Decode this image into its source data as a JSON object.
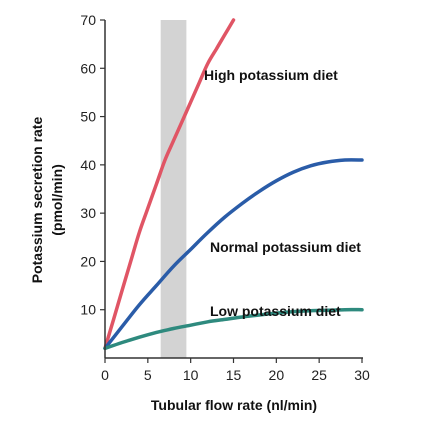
{
  "chart_data": {
    "type": "line",
    "xlabel": "Tubular flow rate (nl/min)",
    "ylabel_line1": "Potassium secretion rate",
    "ylabel_line2": "(pmol/min)",
    "xlim": [
      0,
      30
    ],
    "ylim": [
      0,
      70
    ],
    "x_ticks": [
      0,
      5,
      10,
      15,
      20,
      25,
      30
    ],
    "y_ticks": [
      10,
      20,
      30,
      40,
      50,
      60,
      70
    ],
    "shaded_band": {
      "x_start": 6.5,
      "x_end": 9.5,
      "color": "#d3d3d3"
    },
    "grid": false,
    "series": [
      {
        "name": "High potassium diet",
        "color": "#e05565",
        "x": [
          0,
          1,
          2,
          3,
          4,
          5,
          6,
          7,
          8,
          9,
          10,
          11,
          12,
          13,
          14,
          15
        ],
        "y": [
          2,
          8,
          14,
          20,
          26,
          31,
          36,
          41,
          45,
          49,
          53,
          57,
          61,
          64,
          67,
          70
        ]
      },
      {
        "name": "Normal potassium diet",
        "color": "#2a5ca8",
        "x": [
          0,
          2,
          4,
          6,
          8,
          10,
          12,
          14,
          16,
          18,
          20,
          22,
          24,
          26,
          28,
          30
        ],
        "y": [
          2,
          6.5,
          11,
          15,
          19,
          22.5,
          26,
          29.2,
          32,
          34.5,
          36.7,
          38.5,
          39.8,
          40.6,
          41,
          41
        ]
      },
      {
        "name": "Low potassium diet",
        "color": "#2e8a7e",
        "x": [
          0,
          2,
          4,
          6,
          8,
          10,
          12,
          14,
          16,
          18,
          20,
          22,
          24,
          26,
          28,
          30
        ],
        "y": [
          2,
          3.2,
          4.3,
          5.3,
          6.1,
          6.8,
          7.5,
          8,
          8.5,
          8.9,
          9.3,
          9.6,
          9.8,
          9.9,
          10,
          10
        ]
      }
    ]
  }
}
